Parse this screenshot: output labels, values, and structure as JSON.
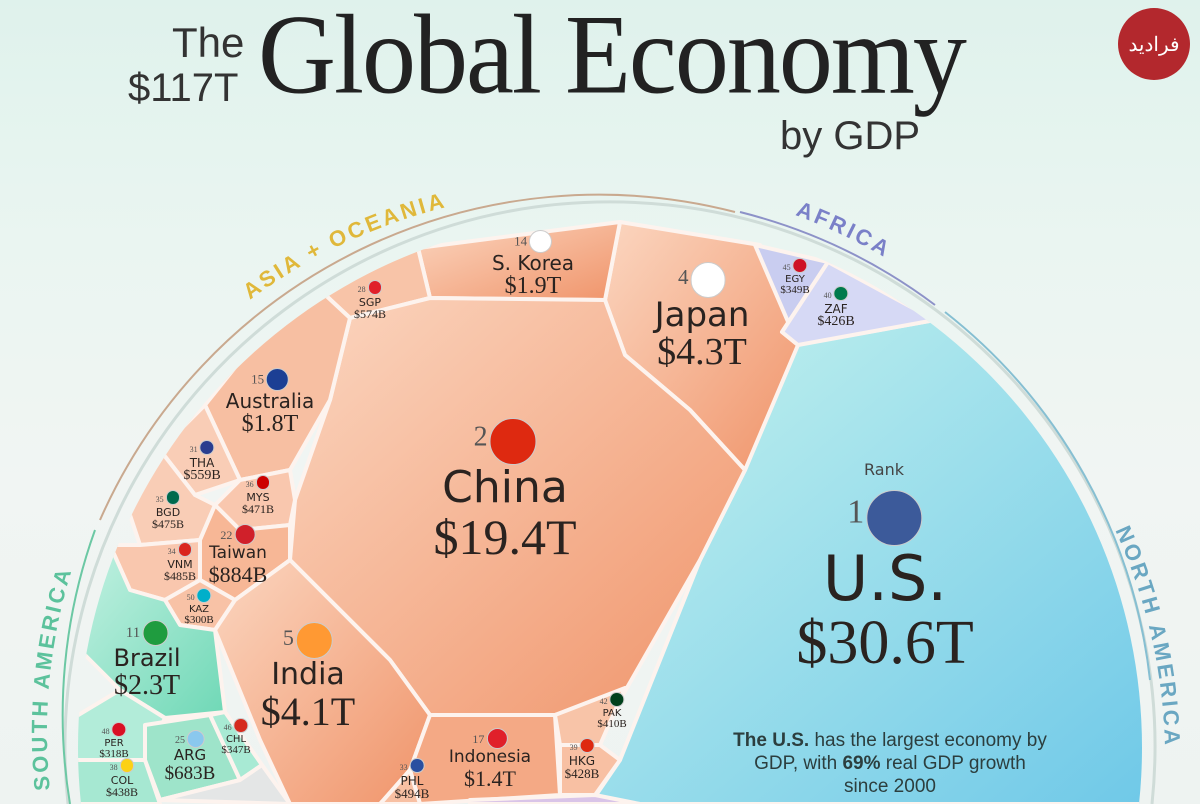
{
  "header": {
    "the": "The",
    "total": "$117T",
    "title": "Global Economy",
    "subtitle": "by GDP",
    "logo_text": "فرادید"
  },
  "rank_label": "Rank",
  "note": {
    "bold1": "The U.S.",
    "text1": " has the largest economy by GDP, with ",
    "bold2": "69%",
    "text2": " real GDP growth since 2000"
  },
  "colors": {
    "asia_oceania": "#f4a37c",
    "north_america": "#8fdde8",
    "south_america": "#7fdcc0",
    "africa": "#c9cdf0",
    "europe": "#d9c4e8",
    "asia_label": "#e0b83a",
    "africa_label": "#7a80c8",
    "na_label": "#6aa7c2",
    "sa_label": "#5cc29c"
  },
  "chart_data": {
    "type": "voronoi-treemap",
    "title": "The $117T Global Economy by GDP",
    "regions": [
      "Asia + Oceania",
      "Africa",
      "North America",
      "South America"
    ],
    "countries": [
      {
        "rank": "1",
        "name": "U.S.",
        "value": "$30.6T",
        "region": "North America"
      },
      {
        "rank": "2",
        "name": "China",
        "value": "$19.4T",
        "region": "Asia + Oceania"
      },
      {
        "rank": "4",
        "name": "Japan",
        "value": "$4.3T",
        "region": "Asia + Oceania"
      },
      {
        "rank": "5",
        "name": "India",
        "value": "$4.1T",
        "region": "Asia + Oceania"
      },
      {
        "rank": "11",
        "name": "Brazil",
        "value": "$2.3T",
        "region": "South America"
      },
      {
        "rank": "14",
        "name": "S. Korea",
        "value": "$1.9T",
        "region": "Asia + Oceania"
      },
      {
        "rank": "15",
        "name": "Australia",
        "value": "$1.8T",
        "region": "Asia + Oceania"
      },
      {
        "rank": "17",
        "name": "Indonesia",
        "value": "$1.4T",
        "region": "Asia + Oceania"
      },
      {
        "rank": "22",
        "name": "Taiwan",
        "value": "$884B",
        "region": "Asia + Oceania"
      },
      {
        "rank": "25",
        "name": "ARG",
        "value": "$683B",
        "region": "South America"
      },
      {
        "rank": "28",
        "name": "SGP",
        "value": "$574B",
        "region": "Asia + Oceania"
      },
      {
        "rank": "31",
        "name": "THA",
        "value": "$559B",
        "region": "Asia + Oceania"
      },
      {
        "rank": "33",
        "name": "PHL",
        "value": "$494B",
        "region": "Asia + Oceania"
      },
      {
        "rank": "34",
        "name": "VNM",
        "value": "$485B",
        "region": "Asia + Oceania"
      },
      {
        "rank": "35",
        "name": "BGD",
        "value": "$475B",
        "region": "Asia + Oceania"
      },
      {
        "rank": "36",
        "name": "MYS",
        "value": "$471B",
        "region": "Asia + Oceania"
      },
      {
        "rank": "38",
        "name": "COL",
        "value": "$438B",
        "region": "South America"
      },
      {
        "rank": "39",
        "name": "HKG",
        "value": "$428B",
        "region": "Asia + Oceania"
      },
      {
        "rank": "40",
        "name": "ZAF",
        "value": "$426B",
        "region": "Africa"
      },
      {
        "rank": "42",
        "name": "PAK",
        "value": "$410B",
        "region": "Asia + Oceania"
      },
      {
        "rank": "45",
        "name": "EGY",
        "value": "$349B",
        "region": "Africa"
      },
      {
        "rank": "46",
        "name": "CHL",
        "value": "$347B",
        "region": "South America"
      },
      {
        "rank": "48",
        "name": "PER",
        "value": "$318B",
        "region": "South America"
      },
      {
        "rank": "50",
        "name": "KAZ",
        "value": "$300B",
        "region": "Asia + Oceania"
      }
    ]
  }
}
